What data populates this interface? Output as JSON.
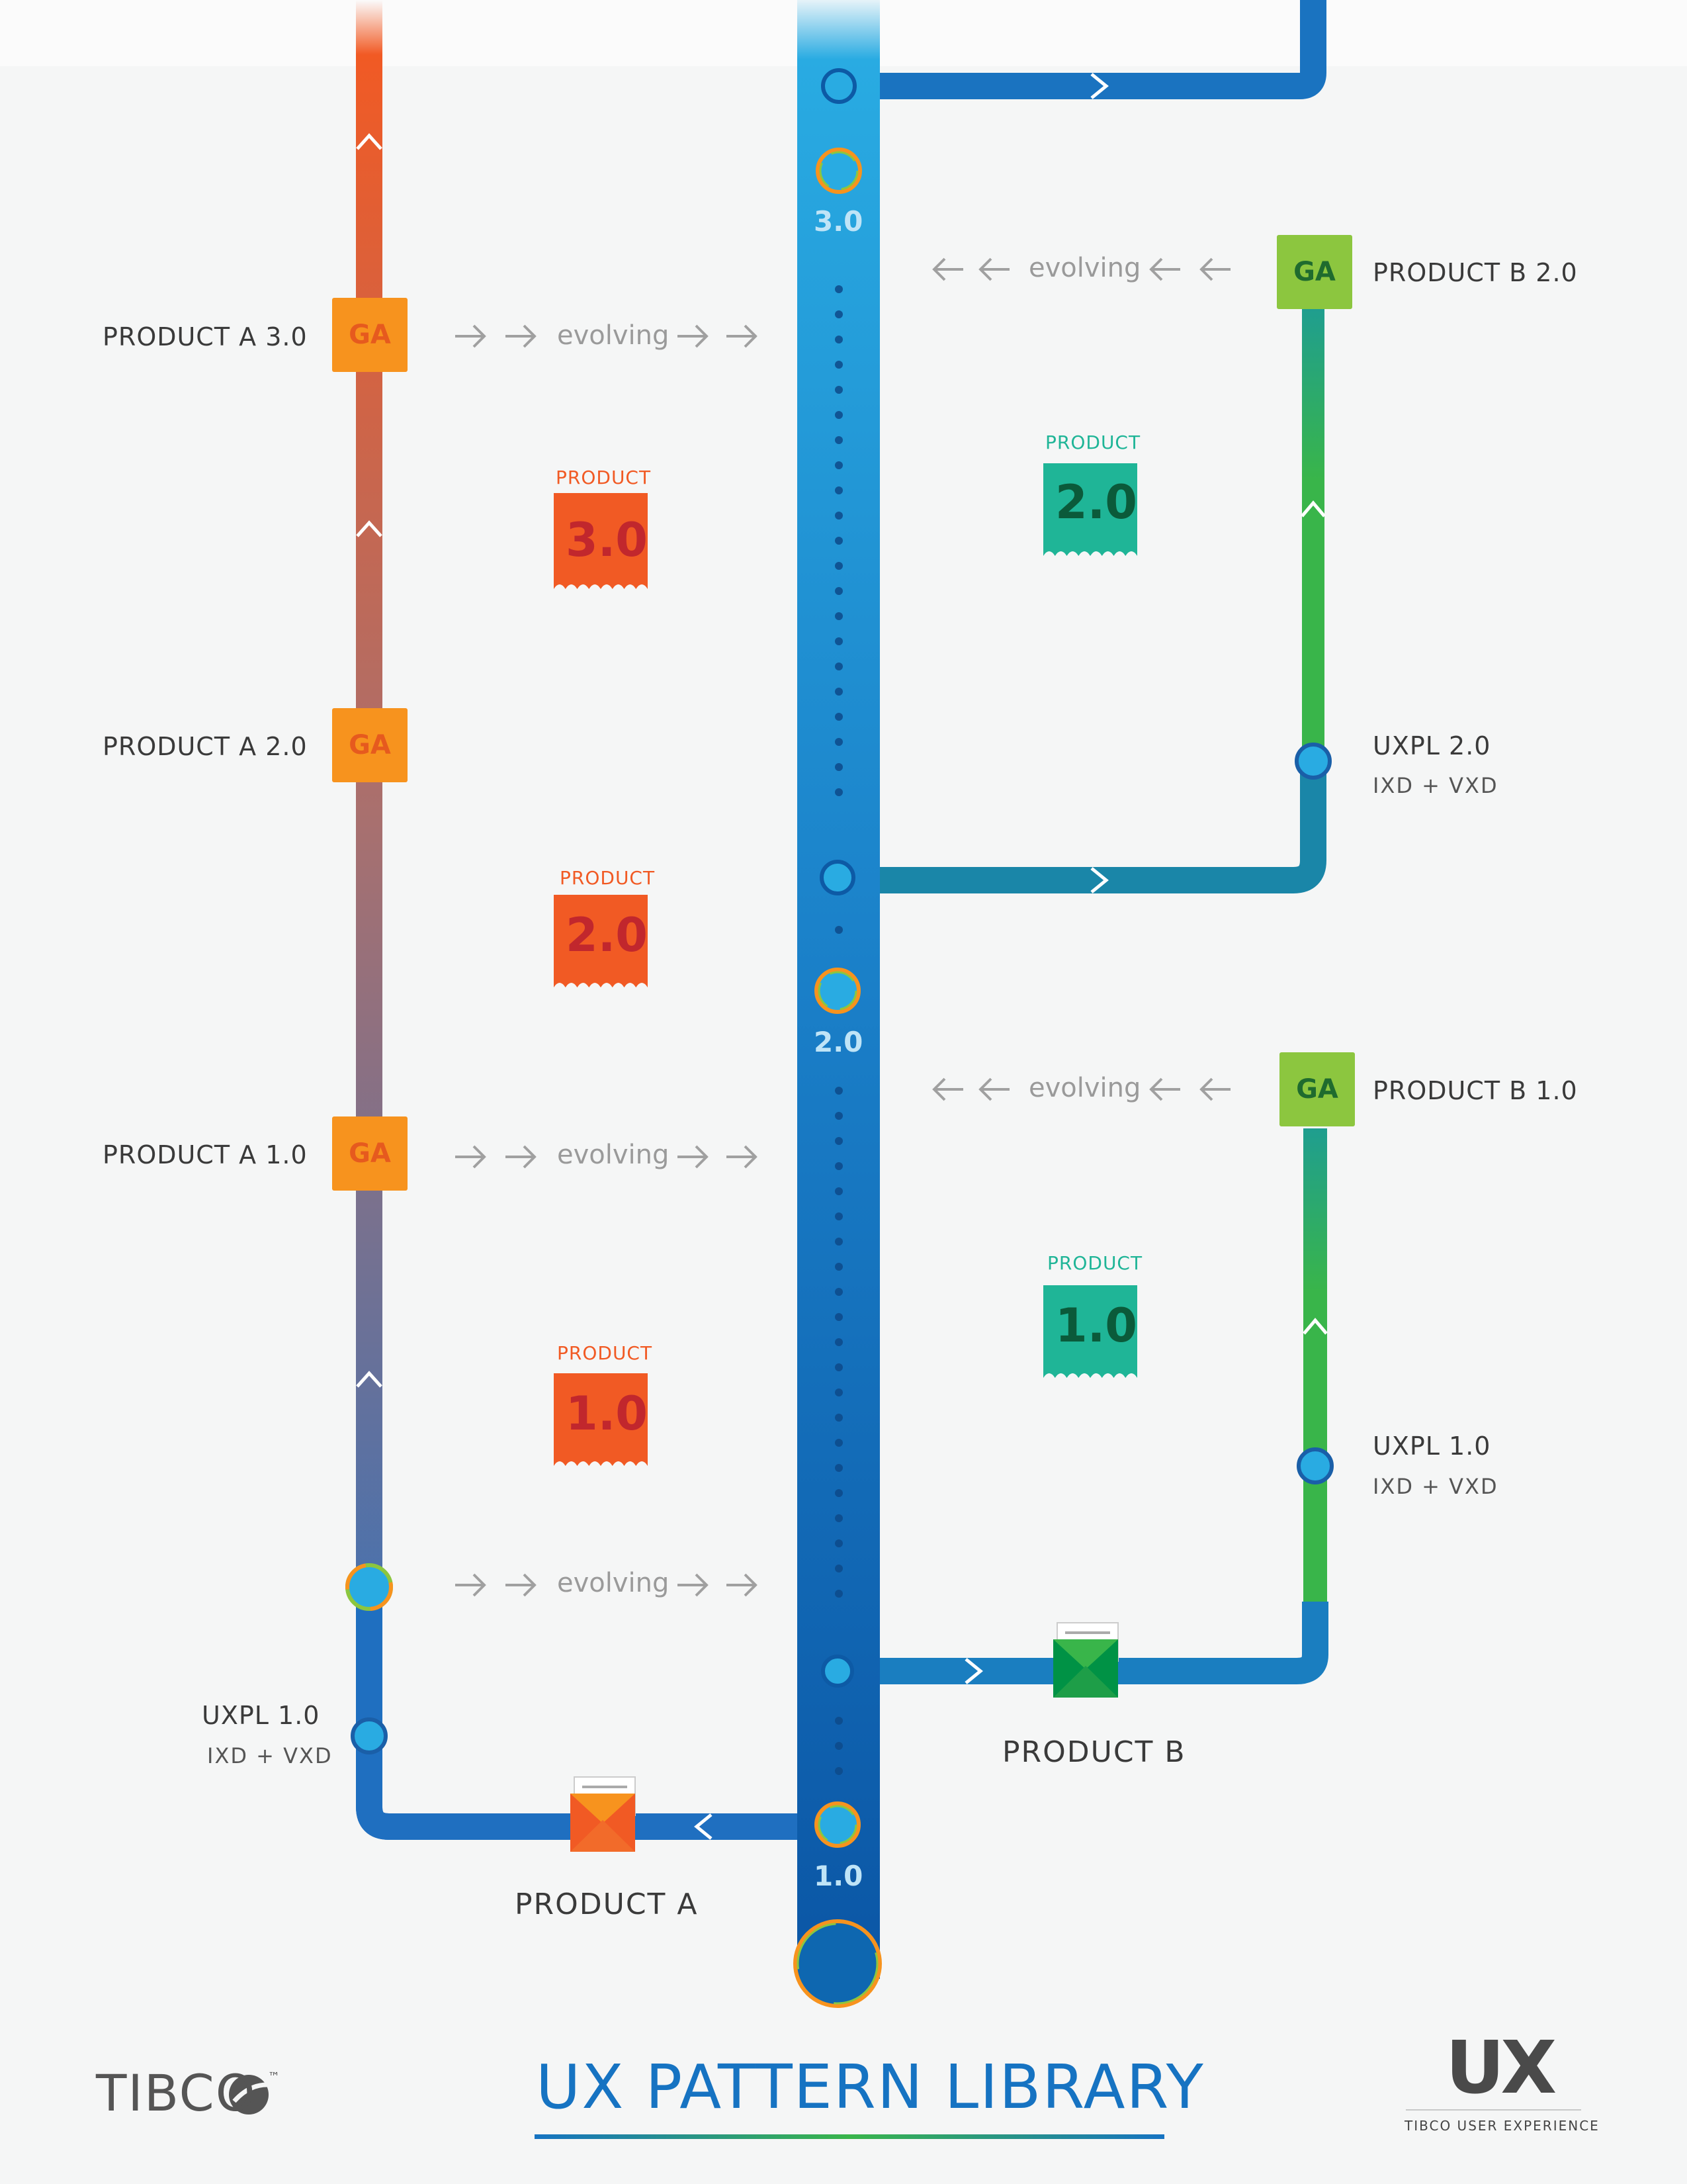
{
  "colors": {
    "background": "#f5f6f6",
    "product_a_track_top": "#f15a24",
    "product_a_track_bottom": "#3f6fb5",
    "main_track_top": "#29abe2",
    "main_track_bottom": "#0b5aa8",
    "product_b_track": "#39b54a",
    "ga_a": "#f7931e",
    "ga_b": "#8cc63f",
    "tag_a": "#f15a24",
    "tag_b": "#1fb597",
    "title": "#1673c2"
  },
  "main_track": {
    "versions": [
      "3.0",
      "2.0",
      "1.0"
    ]
  },
  "product_a": {
    "name": "PRODUCT A",
    "releases": [
      {
        "label": "PRODUCT A 3.0",
        "badge": "GA"
      },
      {
        "label": "PRODUCT A 2.0",
        "badge": "GA"
      },
      {
        "label": "PRODUCT A 1.0",
        "badge": "GA"
      }
    ],
    "tags": [
      {
        "caption": "PRODUCT",
        "version": "3.0"
      },
      {
        "caption": "PRODUCT",
        "version": "2.0"
      },
      {
        "caption": "PRODUCT",
        "version": "1.0"
      }
    ],
    "uxpl": {
      "title": "UXPL 1.0",
      "subtitle": "IXD + VXD"
    }
  },
  "product_b": {
    "name": "PRODUCT B",
    "releases": [
      {
        "label": "PRODUCT B 2.0",
        "badge": "GA"
      },
      {
        "label": "PRODUCT B 1.0",
        "badge": "GA"
      }
    ],
    "tags": [
      {
        "caption": "PRODUCT",
        "version": "2.0"
      },
      {
        "caption": "PRODUCT",
        "version": "1.0"
      }
    ],
    "uxpl": [
      {
        "title": "UXPL 2.0",
        "subtitle": "IXD + VXD"
      },
      {
        "title": "UXPL 1.0",
        "subtitle": "IXD + VXD"
      }
    ]
  },
  "evolving_text": "evolving",
  "footer": {
    "title": "UX PATTERN LIBRARY",
    "company_logo_text": "TIBCO",
    "trademark": "™",
    "ux_logo": "UX",
    "ux_logo_caption": "TIBCO USER EXPERIENCE"
  }
}
